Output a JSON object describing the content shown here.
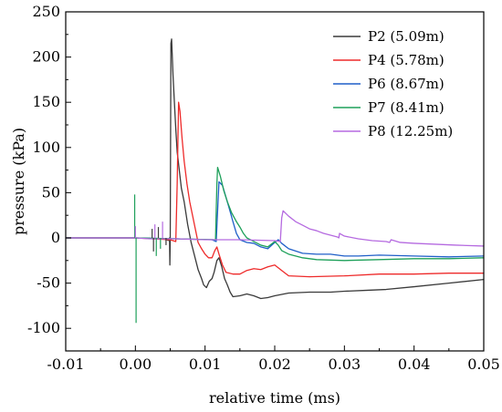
{
  "chart_data": {
    "type": "line",
    "title": "",
    "xlabel": "relative time (ms)",
    "ylabel": "pressure (kPa)",
    "xlim": [
      -0.01,
      0.05
    ],
    "ylim": [
      -125,
      250
    ],
    "x_ticks": [
      -0.01,
      0.0,
      0.01,
      0.02,
      0.03,
      0.04,
      0.05
    ],
    "x_tick_labels": [
      "-0.01",
      "0.00",
      "0.01",
      "0.02",
      "0.03",
      "0.04",
      "0.05"
    ],
    "y_ticks": [
      -100,
      -50,
      0,
      50,
      100,
      150,
      200,
      250
    ],
    "y_tick_labels": [
      "-100",
      "-50",
      "0",
      "50",
      "100",
      "150",
      "200",
      "250"
    ],
    "grid": false,
    "legend_position": "top-right",
    "series": [
      {
        "name": "P2 (5.09m)",
        "color": "#3a3a3a",
        "points": [
          [
            -0.01,
            0
          ],
          [
            0.0,
            0
          ],
          [
            0.004,
            -1
          ],
          [
            0.0049,
            -3
          ],
          [
            0.0049,
            0
          ],
          [
            0.00495,
            -30
          ],
          [
            0.005,
            -5
          ],
          [
            0.0051,
            215
          ],
          [
            0.0052,
            220
          ],
          [
            0.0054,
            180
          ],
          [
            0.0056,
            150
          ],
          [
            0.0058,
            120
          ],
          [
            0.006,
            95
          ],
          [
            0.0063,
            75
          ],
          [
            0.0066,
            55
          ],
          [
            0.007,
            40
          ],
          [
            0.0075,
            15
          ],
          [
            0.008,
            -5
          ],
          [
            0.0085,
            -20
          ],
          [
            0.009,
            -35
          ],
          [
            0.0095,
            -45
          ],
          [
            0.0098,
            -52
          ],
          [
            0.0102,
            -55
          ],
          [
            0.0106,
            -48
          ],
          [
            0.011,
            -45
          ],
          [
            0.0113,
            -38
          ],
          [
            0.0117,
            -25
          ],
          [
            0.012,
            -22
          ],
          [
            0.0124,
            -32
          ],
          [
            0.0128,
            -45
          ],
          [
            0.0132,
            -52
          ],
          [
            0.0136,
            -60
          ],
          [
            0.014,
            -65
          ],
          [
            0.015,
            -64
          ],
          [
            0.016,
            -62
          ],
          [
            0.017,
            -64
          ],
          [
            0.018,
            -67
          ],
          [
            0.019,
            -66
          ],
          [
            0.02,
            -64
          ],
          [
            0.022,
            -61
          ],
          [
            0.025,
            -60
          ],
          [
            0.028,
            -60
          ],
          [
            0.03,
            -59
          ],
          [
            0.033,
            -58
          ],
          [
            0.036,
            -57
          ],
          [
            0.04,
            -54
          ],
          [
            0.045,
            -50
          ],
          [
            0.05,
            -46
          ]
        ]
      },
      {
        "name": "P4 (5.78m)",
        "color": "#ee2a2a",
        "points": [
          [
            -0.01,
            0
          ],
          [
            0.0,
            0
          ],
          [
            0.005,
            -2
          ],
          [
            0.0058,
            -4
          ],
          [
            0.006,
            60
          ],
          [
            0.0062,
            150
          ],
          [
            0.0064,
            140
          ],
          [
            0.0067,
            110
          ],
          [
            0.007,
            85
          ],
          [
            0.0074,
            60
          ],
          [
            0.0078,
            40
          ],
          [
            0.0082,
            25
          ],
          [
            0.0086,
            10
          ],
          [
            0.009,
            -5
          ],
          [
            0.0095,
            -12
          ],
          [
            0.01,
            -18
          ],
          [
            0.0105,
            -22
          ],
          [
            0.011,
            -22
          ],
          [
            0.0114,
            -14
          ],
          [
            0.0117,
            -10
          ],
          [
            0.012,
            -18
          ],
          [
            0.0125,
            -30
          ],
          [
            0.013,
            -38
          ],
          [
            0.014,
            -40
          ],
          [
            0.015,
            -40
          ],
          [
            0.016,
            -36
          ],
          [
            0.017,
            -34
          ],
          [
            0.018,
            -35
          ],
          [
            0.019,
            -32
          ],
          [
            0.02,
            -30
          ],
          [
            0.021,
            -36
          ],
          [
            0.022,
            -42
          ],
          [
            0.025,
            -43
          ],
          [
            0.03,
            -42
          ],
          [
            0.035,
            -40
          ],
          [
            0.04,
            -40
          ],
          [
            0.045,
            -39
          ],
          [
            0.05,
            -39
          ]
        ]
      },
      {
        "name": "P6 (8.67m)",
        "color": "#1f5fc8",
        "points": [
          [
            -0.01,
            0
          ],
          [
            0.0,
            0
          ],
          [
            0.006,
            -1
          ],
          [
            0.011,
            -2
          ],
          [
            0.0116,
            -4
          ],
          [
            0.0118,
            30
          ],
          [
            0.012,
            62
          ],
          [
            0.0125,
            58
          ],
          [
            0.013,
            45
          ],
          [
            0.0135,
            32
          ],
          [
            0.014,
            18
          ],
          [
            0.0145,
            5
          ],
          [
            0.015,
            -2
          ],
          [
            0.016,
            -5
          ],
          [
            0.017,
            -6
          ],
          [
            0.018,
            -10
          ],
          [
            0.019,
            -12
          ],
          [
            0.02,
            -5
          ],
          [
            0.0205,
            -2
          ],
          [
            0.021,
            -6
          ],
          [
            0.022,
            -12
          ],
          [
            0.024,
            -17
          ],
          [
            0.026,
            -18
          ],
          [
            0.028,
            -18
          ],
          [
            0.03,
            -20
          ],
          [
            0.032,
            -20
          ],
          [
            0.035,
            -19
          ],
          [
            0.04,
            -20
          ],
          [
            0.045,
            -21
          ],
          [
            0.05,
            -20
          ]
        ]
      },
      {
        "name": "P7 (8.41m)",
        "color": "#1ea05a",
        "points": [
          [
            -0.01,
            0
          ],
          [
            0.0,
            0
          ],
          [
            0.0115,
            -2
          ],
          [
            0.0117,
            60
          ],
          [
            0.0118,
            78
          ],
          [
            0.0122,
            68
          ],
          [
            0.0127,
            52
          ],
          [
            0.0132,
            40
          ],
          [
            0.0138,
            28
          ],
          [
            0.0145,
            18
          ],
          [
            0.015,
            12
          ],
          [
            0.0155,
            5
          ],
          [
            0.016,
            0
          ],
          [
            0.017,
            -4
          ],
          [
            0.018,
            -8
          ],
          [
            0.019,
            -10
          ],
          [
            0.02,
            -4
          ],
          [
            0.0205,
            -8
          ],
          [
            0.021,
            -14
          ],
          [
            0.022,
            -18
          ],
          [
            0.024,
            -22
          ],
          [
            0.026,
            -24
          ],
          [
            0.03,
            -25
          ],
          [
            0.035,
            -24
          ],
          [
            0.04,
            -23
          ],
          [
            0.045,
            -23
          ],
          [
            0.05,
            -22
          ]
        ]
      },
      {
        "name": "P8 (12.25m)",
        "color": "#b56ae0",
        "points": [
          [
            -0.01,
            0
          ],
          [
            0.0,
            0
          ],
          [
            0.002,
            -1
          ],
          [
            0.006,
            -1
          ],
          [
            0.01,
            -2
          ],
          [
            0.015,
            -2
          ],
          [
            0.02,
            -3
          ],
          [
            0.0208,
            -4
          ],
          [
            0.021,
            22
          ],
          [
            0.0212,
            30
          ],
          [
            0.022,
            24
          ],
          [
            0.023,
            18
          ],
          [
            0.024,
            14
          ],
          [
            0.025,
            10
          ],
          [
            0.026,
            8
          ],
          [
            0.027,
            5
          ],
          [
            0.028,
            3
          ],
          [
            0.029,
            1
          ],
          [
            0.0292,
            0
          ],
          [
            0.0293,
            5
          ],
          [
            0.03,
            2
          ],
          [
            0.032,
            -1
          ],
          [
            0.034,
            -3
          ],
          [
            0.036,
            -4
          ],
          [
            0.0365,
            -5
          ],
          [
            0.0367,
            -2
          ],
          [
            0.038,
            -5
          ],
          [
            0.04,
            -6
          ],
          [
            0.043,
            -7
          ],
          [
            0.046,
            -8
          ],
          [
            0.05,
            -9
          ]
        ]
      }
    ],
    "spikes": [
      {
        "series": 3,
        "x": -0.0001,
        "y": 48
      },
      {
        "series": 3,
        "x": 0.0001,
        "y": -94
      },
      {
        "series": 4,
        "x": 0.0,
        "y": 13
      },
      {
        "series": 0,
        "x": 0.0024,
        "y": 10
      },
      {
        "series": 0,
        "x": 0.0026,
        "y": -15
      },
      {
        "series": 4,
        "x": 0.0028,
        "y": 15
      },
      {
        "series": 3,
        "x": 0.003,
        "y": -20
      },
      {
        "series": 0,
        "x": 0.0033,
        "y": 12
      },
      {
        "series": 3,
        "x": 0.0036,
        "y": -12
      },
      {
        "series": 4,
        "x": 0.0039,
        "y": 18
      },
      {
        "series": 0,
        "x": 0.0044,
        "y": -8
      }
    ]
  }
}
